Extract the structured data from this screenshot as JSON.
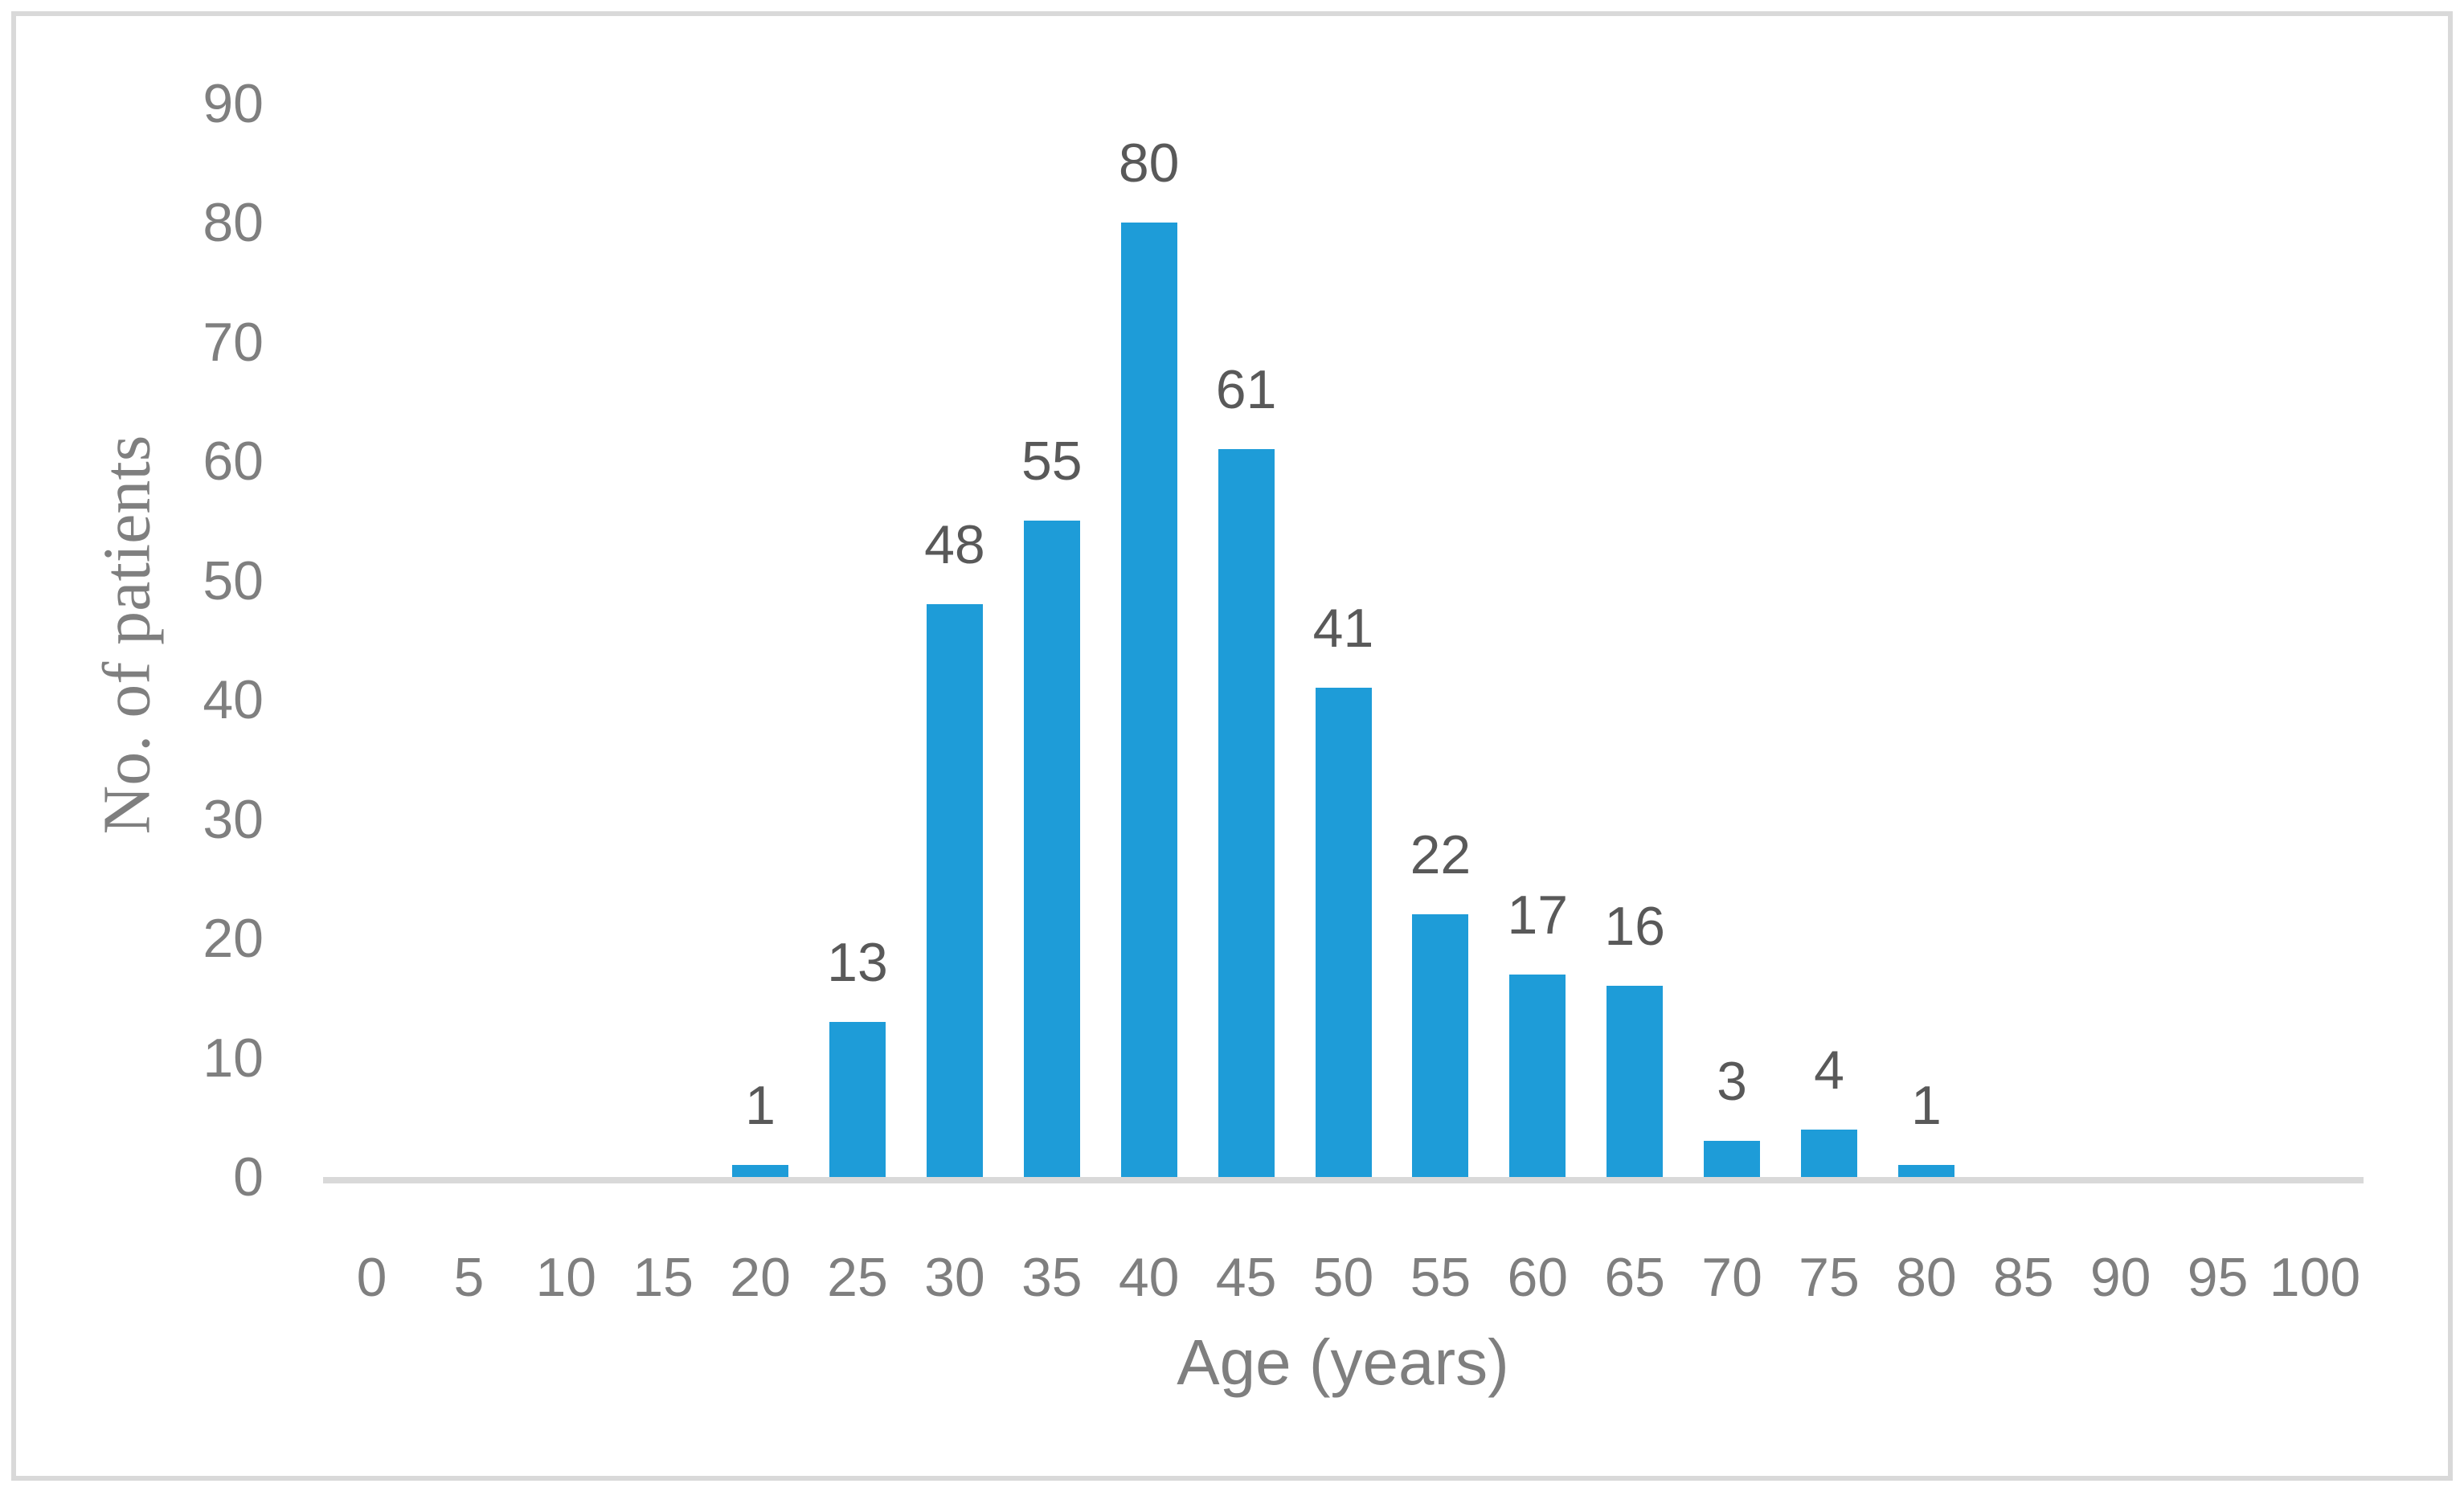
{
  "figure": {
    "background": "#FFFFFF",
    "border_color": "#D9D9D9"
  },
  "chart_data": {
    "type": "bar",
    "title": "",
    "xlabel": "Age (years)",
    "ylabel": "No. of patients",
    "categories": [
      0,
      5,
      10,
      15,
      20,
      25,
      30,
      35,
      40,
      45,
      50,
      55,
      60,
      65,
      70,
      75,
      80,
      85,
      90,
      95,
      100
    ],
    "x_tick_labels": [
      "0",
      "5",
      "10",
      "15",
      "20",
      "25",
      "30",
      "35",
      "40",
      "45",
      "50",
      "55",
      "60",
      "65",
      "70",
      "75",
      "80",
      "85",
      "90",
      "95",
      "100"
    ],
    "values": [
      0,
      0,
      0,
      0,
      1,
      13,
      48,
      55,
      80,
      61,
      41,
      22,
      17,
      16,
      3,
      4,
      1,
      0,
      0,
      0,
      0
    ],
    "data_labels": [
      "",
      "",
      "",
      "",
      "1",
      "13",
      "48",
      "55",
      "80",
      "61",
      "41",
      "22",
      "17",
      "16",
      "3",
      "4",
      "1",
      "",
      "",
      "",
      ""
    ],
    "y_ticks": [
      0,
      10,
      20,
      30,
      40,
      50,
      60,
      70,
      80,
      90
    ],
    "ylim": [
      0,
      90
    ],
    "grid": false,
    "legend": "none",
    "bar_color": "#1E9CD8",
    "tick_label_color": "#7F7F7F",
    "data_label_color": "#595959",
    "axis_title_color": "#7F7F7F",
    "axis_line_color": "#D9D9D9"
  }
}
